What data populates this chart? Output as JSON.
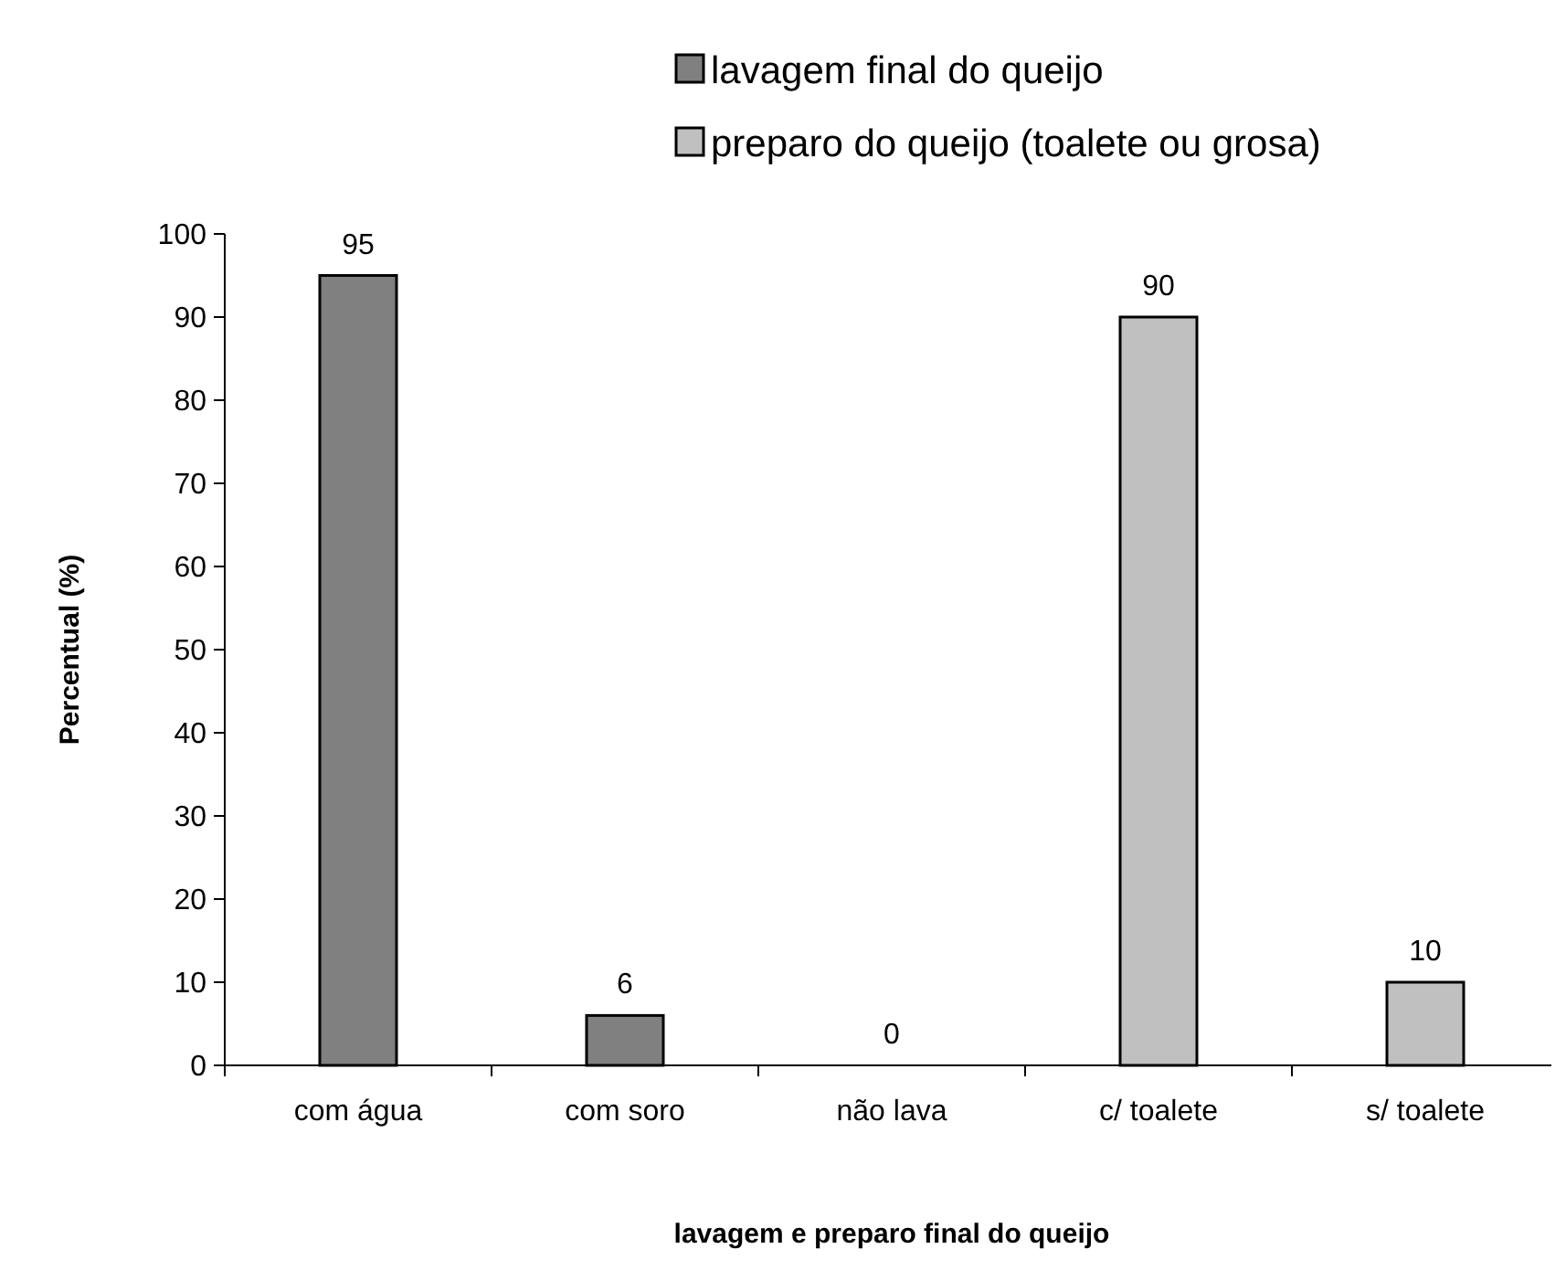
{
  "chart_data": {
    "type": "bar",
    "xlabel": "lavagem e preparo final do queijo",
    "ylabel": "Percentual (%)",
    "categories": [
      "com água",
      "com soro",
      "não lava",
      "c/ toalete",
      "s/ toalete"
    ],
    "series": [
      {
        "name": "lavagem final do queijo",
        "color": "#808080",
        "values": [
          95,
          6,
          0,
          null,
          null
        ]
      },
      {
        "name": "preparo do queijo (toalete ou grosa)",
        "color": "#c0c0c0",
        "values": [
          null,
          null,
          null,
          90,
          10
        ]
      }
    ],
    "ylim": [
      0,
      100
    ],
    "yticks": [
      0,
      10,
      20,
      30,
      40,
      50,
      60,
      70,
      80,
      90,
      100
    ],
    "grid": false,
    "legend": "top right",
    "data_labels": true
  }
}
